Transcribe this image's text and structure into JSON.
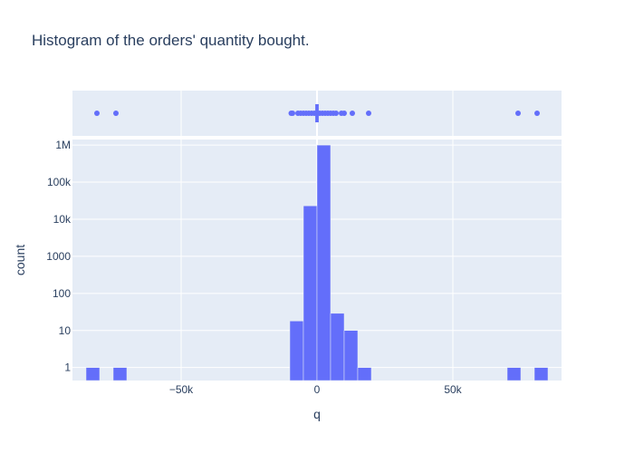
{
  "chart_data": {
    "type": "bar",
    "subtype": "histogram-with-marginal-strip",
    "title": "Histogram of the orders' quantity bought.",
    "xlabel": "q",
    "ylabel": "count",
    "x_ticks": [
      {
        "value": -50000,
        "label": "−50k"
      },
      {
        "value": 0,
        "label": "0"
      },
      {
        "value": 50000,
        "label": "50k"
      }
    ],
    "y_ticks": [
      {
        "value": 1,
        "label": "1"
      },
      {
        "value": 10,
        "label": "10"
      },
      {
        "value": 100,
        "label": "100"
      },
      {
        "value": 1000,
        "label": "1000"
      },
      {
        "value": 10000,
        "label": "10k"
      },
      {
        "value": 100000,
        "label": "100k"
      },
      {
        "value": 1000000,
        "label": "1M"
      }
    ],
    "y_scale": "log",
    "xlim": [
      -90000,
      90000
    ],
    "ylim_log10": [
      -0.35,
      6.15
    ],
    "bin_width": 5000,
    "bins": [
      {
        "start": -85000,
        "count": 1
      },
      {
        "start": -75000,
        "count": 1
      },
      {
        "start": -10000,
        "count": 18
      },
      {
        "start": -5000,
        "count": 23000
      },
      {
        "start": 0,
        "count": 1000000
      },
      {
        "start": 5000,
        "count": 29
      },
      {
        "start": 10000,
        "count": 10
      },
      {
        "start": 15000,
        "count": 1
      },
      {
        "start": 70000,
        "count": 1
      },
      {
        "start": 80000,
        "count": 1
      }
    ],
    "strip_points": [
      -81000,
      -74000,
      -9500,
      -9000,
      -7000,
      -6000,
      -5000,
      -4000,
      -3000,
      -2000,
      -1000,
      0,
      1000,
      2000,
      3000,
      4000,
      5000,
      6000,
      7000,
      9000,
      10000,
      13000,
      19000,
      74000,
      81000
    ],
    "strip_box": {
      "q1": -300,
      "q3": 300
    },
    "grid": true,
    "colors": {
      "series": "#636efa",
      "plot_bg": "#e5ecf6"
    }
  }
}
